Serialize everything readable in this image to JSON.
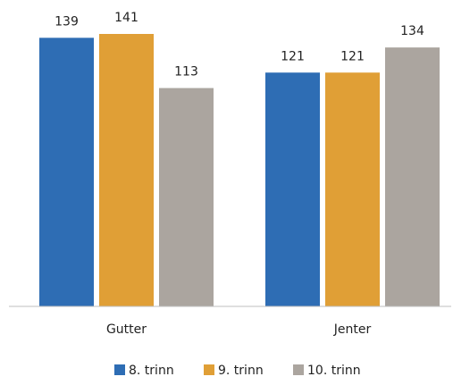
{
  "chart_data": {
    "type": "bar",
    "categories": [
      "Gutter",
      "Jenter"
    ],
    "series": [
      {
        "name": "8. trinn",
        "color": "#2e6db4",
        "values": [
          139,
          121
        ]
      },
      {
        "name": "9. trinn",
        "color": "#e09f36",
        "values": [
          141,
          121
        ]
      },
      {
        "name": "10. trinn",
        "color": "#aba59f",
        "values": [
          113,
          134
        ]
      }
    ],
    "ylim": [
      0,
      141
    ],
    "grid": false,
    "data_labels": true,
    "legend_position": "bottom-center"
  }
}
